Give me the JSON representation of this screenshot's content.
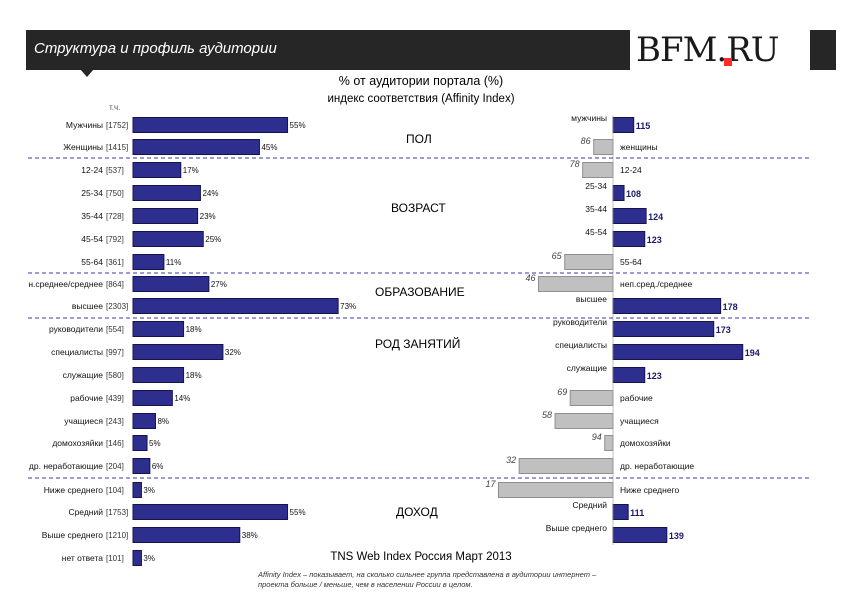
{
  "header": {
    "title": "Структура и профиль аудитории",
    "logo": "BFM.RU",
    "bar_color": "#262626",
    "logo_dot_color": "#ff2a2a"
  },
  "titles": {
    "line1": "% от аудитории портала (%)",
    "line2": "индекс соответствия (Affinity Index)",
    "tch": "т.ч."
  },
  "footer": {
    "source": "TNS Web Index Россия Март 2013",
    "note": "Affinity Index – показывает, на сколько сильнее группа представлена в аудитории интернет – проекта больше / меньше, чем в населении России в целом."
  },
  "colors": {
    "bar": "#2e2e8f",
    "bar_edge": "#14144d",
    "gray": "#c0c0c0",
    "gray_edge": "#8f8f8f",
    "divider": "#3a3aa8"
  },
  "chart_data": [
    {
      "type": "bar",
      "title": "% от аудитории портала (%)",
      "orientation": "horizontal",
      "xlim": [
        0,
        75
      ],
      "categories": [
        "Мужчины",
        "Женщины",
        "12-24",
        "25-34",
        "35-44",
        "45-54",
        "55-64",
        "н.среднее/среднее",
        "высшее",
        "руководители",
        "специалисты",
        "служащие",
        "рабочие",
        "учащиеся",
        "домохозяйки",
        "др. неработающие",
        "Ниже среднего",
        "Средний",
        "Выше среднего",
        "нет ответа"
      ],
      "counts": [
        "[1752]",
        "[1415]",
        "[537]",
        "[750]",
        "[728]",
        "[792]",
        "[361]",
        "[864]",
        "[2303]",
        "[554]",
        "[997]",
        "[580]",
        "[439]",
        "[243]",
        "[146]",
        "[204]",
        "[104]",
        "[1753]",
        "[1210]",
        "[101]"
      ],
      "values": [
        55,
        45,
        17,
        24,
        23,
        25,
        11,
        27,
        73,
        18,
        32,
        18,
        14,
        8,
        5,
        6,
        3,
        55,
        38,
        3
      ],
      "value_labels": [
        "55%",
        "45%",
        "17%",
        "24%",
        "23%",
        "25%",
        "11%",
        "27%",
        "73%",
        "18%",
        "32%",
        "18%",
        "14%",
        "8%",
        "5%",
        "6%",
        "3%",
        "55%",
        "38%",
        "3%"
      ]
    },
    {
      "type": "bar",
      "title": "индекс соответствия (Affinity Index)",
      "orientation": "horizontal",
      "baseline": 100,
      "categories": [
        "мужчины",
        "женщины",
        "12-24",
        "25-34",
        "35-44",
        "45-54",
        "55-64",
        "неп.сред./среднее",
        "высшее",
        "руководители",
        "специалисты",
        "служащие",
        "рабочие",
        "учащиеся",
        "домохозяйки",
        "др. неработающие",
        "Ниже среднего",
        "Средний",
        "Выше среднего"
      ],
      "values": [
        115,
        86,
        78,
        108,
        124,
        123,
        65,
        46,
        178,
        173,
        194,
        123,
        69,
        58,
        94,
        32,
        17,
        111,
        139
      ]
    }
  ],
  "sections": [
    {
      "name": "ПОЛ"
    },
    {
      "name": "ВОЗРАСТ"
    },
    {
      "name": "ОБРАЗОВАНИЕ"
    },
    {
      "name": "РОД ЗАНЯТИЙ"
    },
    {
      "name": "ДОХОД"
    }
  ]
}
